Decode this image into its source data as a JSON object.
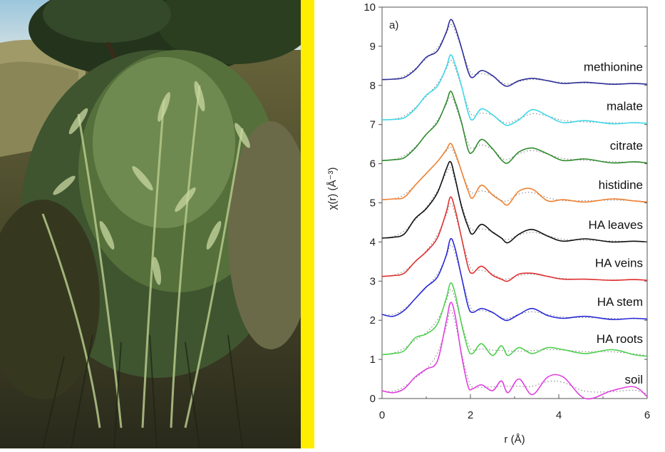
{
  "chart_data": {
    "type": "line",
    "panel_label": "a)",
    "xlabel": "r (Å)",
    "ylabel": "χ(r) (Å⁻³)",
    "xlim": [
      0,
      6
    ],
    "ylim": [
      0,
      10
    ],
    "xticks": [
      "0",
      "2",
      "4",
      "6"
    ],
    "yticks": [
      "0",
      "1",
      "2",
      "3",
      "4",
      "5",
      "6",
      "7",
      "8",
      "9",
      "10"
    ],
    "grid": false,
    "legend": "labels above each curve at right",
    "styles": {
      "experimental": "solid",
      "fit": "dotted"
    },
    "x": [
      0,
      0.25,
      0.5,
      0.75,
      1.0,
      1.25,
      1.45,
      1.55,
      1.65,
      1.8,
      1.95,
      2.05,
      2.25,
      2.5,
      2.7,
      2.85,
      3.1,
      3.4,
      3.75,
      4.1,
      4.6,
      5.2,
      5.7,
      6.0
    ],
    "series": [
      {
        "name": "methionine",
        "color": "#2e2e9a",
        "values": [
          8.15,
          8.16,
          8.2,
          8.4,
          8.72,
          8.88,
          9.35,
          9.68,
          9.5,
          8.95,
          8.35,
          8.2,
          8.38,
          8.25,
          8.05,
          7.98,
          8.12,
          8.18,
          8.12,
          8.05,
          8.08,
          8.03,
          8.05,
          8.03
        ]
      },
      {
        "name": "malate",
        "color": "#40d8e8",
        "values": [
          7.12,
          7.13,
          7.17,
          7.4,
          7.75,
          7.98,
          8.45,
          8.78,
          8.55,
          7.98,
          7.3,
          7.12,
          7.4,
          7.25,
          7.06,
          6.98,
          7.12,
          7.38,
          7.22,
          7.05,
          7.1,
          7.02,
          7.05,
          7.03
        ]
      },
      {
        "name": "citrate",
        "color": "#2e8b2e",
        "values": [
          6.08,
          6.1,
          6.15,
          6.4,
          6.75,
          7.05,
          7.55,
          7.85,
          7.6,
          7.05,
          6.35,
          6.3,
          6.62,
          6.38,
          6.1,
          6.02,
          6.3,
          6.4,
          6.25,
          6.08,
          6.12,
          6.02,
          6.05,
          6.02
        ]
      },
      {
        "name": "histidine",
        "color": "#f08030",
        "values": [
          5.08,
          5.1,
          5.14,
          5.45,
          5.75,
          6.05,
          6.35,
          6.52,
          6.3,
          5.8,
          5.3,
          5.12,
          5.45,
          5.2,
          5.05,
          4.95,
          5.3,
          5.35,
          5.05,
          5.08,
          5.02,
          5.1,
          5.05,
          5.02
        ]
      },
      {
        "name": "HA leaves",
        "color": "#111111",
        "values": [
          4.1,
          4.12,
          4.2,
          4.6,
          4.85,
          5.25,
          5.85,
          6.05,
          5.65,
          4.9,
          4.38,
          4.2,
          4.45,
          4.25,
          4.1,
          3.98,
          4.2,
          4.32,
          4.15,
          4.02,
          4.08,
          4.0,
          4.02,
          4.0
        ]
      },
      {
        "name": "HA veins",
        "color": "#e03030",
        "values": [
          3.12,
          3.14,
          3.2,
          3.5,
          3.75,
          4.1,
          4.75,
          5.15,
          4.85,
          4.1,
          3.35,
          3.2,
          3.38,
          3.15,
          3.05,
          3.0,
          3.18,
          3.2,
          3.12,
          3.05,
          3.05,
          3.02,
          3.04,
          3.02
        ]
      },
      {
        "name": "HA stem",
        "color": "#2a2ad8",
        "values": [
          2.15,
          2.1,
          2.25,
          2.55,
          2.85,
          3.1,
          3.65,
          4.08,
          3.85,
          3.1,
          2.35,
          2.2,
          2.3,
          2.2,
          2.05,
          2.0,
          2.15,
          2.3,
          2.12,
          2.05,
          2.1,
          2.02,
          2.05,
          2.03
        ]
      },
      {
        "name": "HA roots",
        "color": "#50d050",
        "values": [
          1.12,
          1.15,
          1.22,
          1.55,
          1.65,
          1.9,
          2.55,
          2.95,
          2.7,
          1.9,
          1.25,
          1.15,
          1.4,
          1.1,
          1.35,
          1.1,
          1.3,
          1.15,
          1.3,
          1.25,
          1.15,
          1.25,
          1.12,
          1.08
        ]
      },
      {
        "name": "soil",
        "color": "#e040e0",
        "values": [
          0.2,
          0.15,
          0.25,
          0.55,
          0.75,
          0.95,
          1.95,
          2.45,
          2.15,
          1.1,
          0.3,
          0.25,
          0.35,
          0.2,
          0.45,
          0.15,
          0.5,
          0.1,
          0.55,
          0.55,
          0.0,
          0.2,
          0.3,
          0.05
        ]
      }
    ]
  }
}
